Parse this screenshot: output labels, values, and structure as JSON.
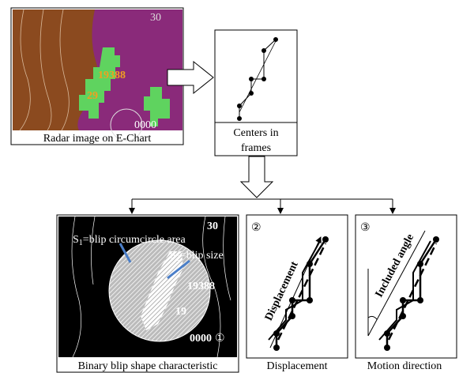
{
  "radar": {
    "caption": "Radar image on E-Chart",
    "labels": [
      "30",
      "19388",
      "29",
      "0000"
    ]
  },
  "centers": {
    "caption": [
      "Centers in",
      "frames"
    ]
  },
  "binary": {
    "caption": "Binary blip shape characteristic",
    "s1": {
      "base": "S",
      "sub": "1",
      "rest": "=blip circumcircle area"
    },
    "s2": {
      "base": "S",
      "sub": "2",
      "rest": "=blip size"
    },
    "labels": [
      "30",
      "19388",
      "19",
      "0000"
    ],
    "number": "①"
  },
  "displacement": {
    "caption": "Displacement",
    "label": "Displacement",
    "number": "②"
  },
  "motion": {
    "caption": "Motion direction",
    "label": "Included angle",
    "number": "③"
  }
}
